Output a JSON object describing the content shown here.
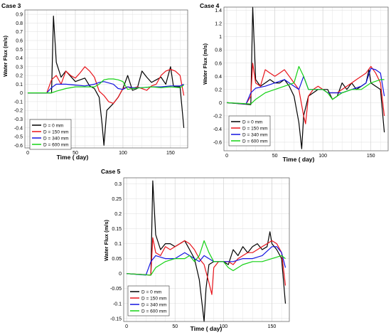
{
  "series_colors": [
    "#000000",
    "#e8141b",
    "#1414e0",
    "#14d214"
  ],
  "chart_data": [
    {
      "type": "line",
      "title": "Case 3",
      "xlabel": "Time ( day)",
      "ylabel": "Water Flux (m/s)",
      "xlim": [
        -3,
        168
      ],
      "ylim": [
        -0.63,
        0.95
      ],
      "xticks": [
        0,
        50,
        100,
        150
      ],
      "yticks": [
        -0.6,
        -0.5,
        -0.4,
        -0.3,
        -0.2,
        -0.1,
        0,
        0.1,
        0.2,
        0.3,
        0.4,
        0.5,
        0.6,
        0.7,
        0.8,
        0.9
      ],
      "ytick_labels": [
        "-0.6",
        "-0.5",
        "-0.4",
        "-0.3",
        "-0.2",
        "-0.1",
        "0",
        "0.1",
        "0.2",
        "0.3",
        "0.4",
        "0.5",
        "0.6",
        "0.7",
        "0.8",
        "0.9"
      ],
      "legend_position": "bottom-left",
      "grid": true,
      "series": [
        {
          "name": "D = 0 mm",
          "x": [
            0,
            25,
            27,
            30,
            35,
            40,
            50,
            55,
            60,
            65,
            70,
            75,
            78,
            80,
            83,
            90,
            95,
            100,
            105,
            110,
            115,
            120,
            125,
            130,
            135,
            140,
            145,
            150,
            153,
            155,
            160,
            164
          ],
          "y": [
            0,
            0,
            0.88,
            0.35,
            0.18,
            0.25,
            0.13,
            0.15,
            0.17,
            0.08,
            0.05,
            -0.05,
            -0.35,
            -0.6,
            -0.2,
            -0.12,
            -0.05,
            0.05,
            0.2,
            0.03,
            0.05,
            0.25,
            0.18,
            0.12,
            0.15,
            0.18,
            0.1,
            0.3,
            0.08,
            0.07,
            0.07,
            -0.4
          ]
        },
        {
          "name": "D = 150 mm",
          "x": [
            0,
            20,
            25,
            30,
            35,
            40,
            45,
            50,
            55,
            60,
            65,
            70,
            75,
            80,
            85,
            90,
            95,
            100,
            105,
            110,
            115,
            120,
            125,
            130,
            135,
            140,
            145,
            150,
            155,
            160,
            164
          ],
          "y": [
            0,
            0,
            0.15,
            0.2,
            0.1,
            0.25,
            0.2,
            0.17,
            0.23,
            0.3,
            0.25,
            0.18,
            0.02,
            -0.03,
            -0.1,
            -0.12,
            -0.05,
            0.05,
            0.07,
            0.05,
            0.07,
            0.05,
            0.03,
            0.08,
            0.1,
            0.2,
            0.25,
            0.27,
            0.25,
            0.2,
            -0.03
          ]
        },
        {
          "name": "D = 340 mm",
          "x": [
            0,
            20,
            25,
            30,
            40,
            50,
            60,
            70,
            75,
            80,
            90,
            95,
            100,
            105,
            110,
            120,
            130,
            140,
            150,
            155,
            160,
            164
          ],
          "y": [
            0,
            0,
            0.06,
            0.1,
            0.1,
            0.09,
            0.08,
            0.1,
            0.12,
            0.13,
            0.1,
            0.05,
            0.04,
            0.07,
            0.06,
            0.06,
            0.07,
            0.07,
            0.08,
            0.08,
            0.08,
            0.1
          ]
        },
        {
          "name": "D = 600 mm",
          "x": [
            0,
            25,
            30,
            40,
            50,
            60,
            70,
            75,
            80,
            85,
            90,
            95,
            100,
            105,
            110,
            120,
            130,
            140,
            150,
            160,
            164
          ],
          "y": [
            0,
            0,
            0.02,
            0.05,
            0.07,
            0.07,
            0.07,
            0.1,
            0.15,
            0.16,
            0.16,
            0.15,
            0.13,
            0.04,
            0.05,
            0.06,
            0.07,
            0.06,
            0.07,
            0.06,
            0.09
          ]
        }
      ]
    },
    {
      "type": "line",
      "title": "Case 4",
      "xlabel": "Time ( day)",
      "ylabel": "Water Flux (m/s)",
      "xlim": [
        -3,
        168
      ],
      "ylim": [
        -0.73,
        1.45
      ],
      "xticks": [
        0,
        50,
        100,
        150
      ],
      "yticks": [
        -0.6,
        -0.4,
        -0.2,
        0,
        0.2,
        0.4,
        0.6,
        0.8,
        1,
        1.2,
        1.4
      ],
      "ytick_labels": [
        "-0.6",
        "-0.4",
        "-0.2",
        "0",
        "0.2",
        "0.4",
        "0.6",
        "0.8",
        "1",
        "1.2",
        "1.4"
      ],
      "legend_position": "bottom-left",
      "grid": true,
      "series": [
        {
          "name": "D = 0 mm",
          "x": [
            0,
            25,
            27,
            30,
            35,
            40,
            45,
            50,
            55,
            60,
            65,
            70,
            75,
            78,
            80,
            85,
            90,
            95,
            100,
            105,
            110,
            115,
            120,
            125,
            130,
            135,
            140,
            145,
            148,
            150,
            155,
            160,
            164
          ],
          "y": [
            0,
            -0.03,
            1.45,
            0.35,
            0.25,
            0.3,
            0.35,
            0.3,
            0.3,
            0.35,
            0.25,
            0.1,
            -0.3,
            -0.7,
            -0.2,
            0.1,
            0.15,
            0.2,
            0.2,
            0.2,
            0.05,
            0.1,
            0.3,
            0.2,
            0.3,
            0.2,
            0.25,
            0.3,
            0.5,
            0.3,
            0.25,
            0.2,
            -0.45
          ]
        },
        {
          "name": "D = 150 mm",
          "x": [
            0,
            20,
            25,
            27,
            30,
            35,
            40,
            45,
            50,
            55,
            60,
            65,
            70,
            75,
            80,
            82,
            85,
            90,
            95,
            100,
            105,
            110,
            115,
            120,
            125,
            130,
            135,
            140,
            145,
            150,
            155,
            160,
            164
          ],
          "y": [
            0,
            -0.02,
            0.1,
            0.6,
            0.3,
            0.25,
            0.5,
            0.45,
            0.4,
            0.45,
            0.5,
            0.4,
            0.3,
            0.2,
            -0.2,
            -0.32,
            0.1,
            0.2,
            0.25,
            0.2,
            0.15,
            0.15,
            0.15,
            0.2,
            0.25,
            0.3,
            0.35,
            0.4,
            0.45,
            0.55,
            0.45,
            0.3,
            -0.2
          ]
        },
        {
          "name": "D = 340 mm",
          "x": [
            0,
            20,
            25,
            30,
            40,
            50,
            60,
            70,
            75,
            80,
            85,
            90,
            95,
            100,
            105,
            110,
            120,
            130,
            140,
            145,
            150,
            155,
            160,
            164
          ],
          "y": [
            0,
            -0.02,
            0.15,
            0.22,
            0.25,
            0.3,
            0.35,
            0.25,
            0.2,
            0.4,
            0.2,
            0.2,
            0.2,
            0.2,
            0.15,
            0.15,
            0.15,
            0.2,
            0.25,
            0.3,
            0.52,
            0.5,
            0.45,
            0.1
          ]
        },
        {
          "name": "D = 600 mm",
          "x": [
            0,
            25,
            30,
            40,
            50,
            60,
            70,
            75,
            80,
            85,
            90,
            95,
            100,
            105,
            110,
            115,
            120,
            130,
            140,
            150,
            160,
            164
          ],
          "y": [
            0,
            -0.02,
            0.05,
            0.15,
            0.2,
            0.25,
            0.3,
            0.55,
            0.4,
            0.2,
            0.2,
            0.2,
            0.2,
            0.15,
            0.05,
            0.1,
            0.15,
            0.2,
            0.2,
            0.3,
            0.35,
            0.35
          ]
        }
      ]
    },
    {
      "type": "line",
      "title": "Case 5",
      "xlabel": "Time ( day)",
      "ylabel": "Water Flux (m/s)",
      "xlim": [
        -3,
        168
      ],
      "ylim": [
        -0.16,
        0.32
      ],
      "xticks": [
        0,
        50,
        100,
        150
      ],
      "yticks": [
        -0.15,
        -0.1,
        -0.05,
        0,
        0.05,
        0.1,
        0.15,
        0.2,
        0.25,
        0.3
      ],
      "ytick_labels": [
        "-0.15",
        "-0.1",
        "-0.05",
        "0",
        "0.05",
        "0.1",
        "0.15",
        "0.2",
        "0.25",
        "0.3"
      ],
      "legend_position": "bottom-left",
      "grid": true,
      "series": [
        {
          "name": "D = 0 mm",
          "x": [
            0,
            25,
            27,
            30,
            35,
            40,
            45,
            50,
            55,
            60,
            65,
            70,
            75,
            80,
            82,
            85,
            90,
            95,
            100,
            105,
            110,
            115,
            120,
            125,
            130,
            135,
            140,
            145,
            148,
            150,
            155,
            160,
            164
          ],
          "y": [
            0,
            -0.005,
            0.31,
            0.13,
            0.08,
            0.1,
            0.1,
            0.09,
            0.1,
            0.11,
            0.08,
            0.05,
            -0.02,
            -0.16,
            -0.05,
            0.03,
            0.04,
            0.04,
            0.04,
            0.03,
            0.08,
            0.06,
            0.09,
            0.07,
            0.09,
            0.1,
            0.08,
            0.09,
            0.14,
            0.1,
            0.08,
            0.05,
            -0.1
          ]
        },
        {
          "name": "D = 150 mm",
          "x": [
            0,
            25,
            27,
            30,
            35,
            40,
            45,
            50,
            55,
            60,
            65,
            70,
            75,
            80,
            85,
            88,
            90,
            95,
            100,
            105,
            110,
            115,
            120,
            125,
            130,
            135,
            140,
            145,
            150,
            155,
            160,
            164
          ],
          "y": [
            0,
            -0.005,
            0.12,
            0.07,
            0.06,
            0.09,
            0.08,
            0.09,
            0.1,
            0.11,
            0.1,
            0.08,
            0.05,
            0.03,
            -0.03,
            -0.07,
            0.02,
            0.04,
            0.04,
            0.04,
            0.03,
            0.05,
            0.06,
            0.07,
            0.07,
            0.08,
            0.09,
            0.1,
            0.11,
            0.1,
            0.07,
            -0.04
          ]
        },
        {
          "name": "D = 340 mm",
          "x": [
            0,
            20,
            25,
            30,
            40,
            50,
            60,
            65,
            70,
            75,
            80,
            85,
            90,
            100,
            110,
            120,
            130,
            140,
            150,
            155,
            160,
            164
          ],
          "y": [
            0,
            -0.005,
            0.04,
            0.06,
            0.05,
            0.05,
            0.07,
            0.06,
            0.05,
            0.04,
            0.06,
            0.05,
            0.04,
            0.04,
            0.04,
            0.05,
            0.05,
            0.06,
            0.09,
            0.09,
            0.07,
            0.02
          ]
        },
        {
          "name": "D = 600 mm",
          "x": [
            0,
            25,
            30,
            40,
            50,
            60,
            65,
            70,
            75,
            80,
            85,
            90,
            95,
            100,
            105,
            110,
            120,
            130,
            140,
            150,
            160,
            164
          ],
          "y": [
            0,
            -0.005,
            0.02,
            0.04,
            0.05,
            0.05,
            0.06,
            0.04,
            0.06,
            0.11,
            0.07,
            0.04,
            0.04,
            0.04,
            0.02,
            0.01,
            0.03,
            0.04,
            0.04,
            0.05,
            0.06,
            0.05
          ]
        }
      ]
    }
  ]
}
